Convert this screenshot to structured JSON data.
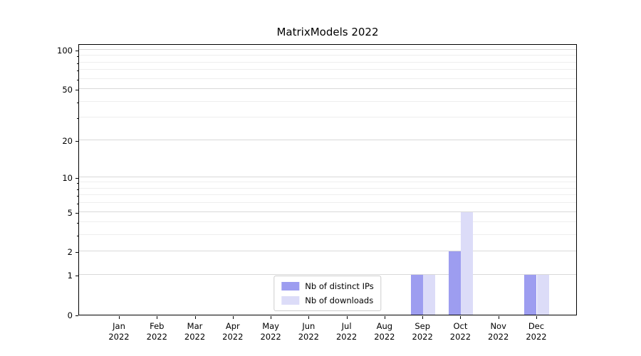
{
  "title": "MatrixModels 2022",
  "chart_data": {
    "type": "bar",
    "title": "MatrixModels 2022",
    "xlabel": "",
    "ylabel": "",
    "categories": [
      "Jan",
      "Feb",
      "Mar",
      "Apr",
      "May",
      "Jun",
      "Jul",
      "Aug",
      "Sep",
      "Oct",
      "Nov",
      "Dec"
    ],
    "year": "2022",
    "series": [
      {
        "name": "Nb of distinct IPs",
        "color": "#9d9df0",
        "values": [
          0,
          0,
          0,
          0,
          0,
          0,
          0,
          0,
          1,
          2,
          0,
          1
        ]
      },
      {
        "name": "Nb of downloads",
        "color": "#dcdcf8",
        "values": [
          0,
          0,
          0,
          0,
          0,
          0,
          0,
          0,
          1,
          5,
          0,
          1
        ]
      }
    ],
    "scale": "log10(value+1)",
    "ylim": [
      0,
      112
    ],
    "y_major_ticks": [
      0,
      1,
      2,
      5,
      10,
      20,
      50,
      100
    ],
    "y_minor_ticks": [
      3,
      4,
      6,
      7,
      8,
      9,
      30,
      40,
      60,
      70,
      80,
      90
    ],
    "grid": true,
    "legend_position": "lower center"
  },
  "colors": {
    "major_grid": "#d9d9d9",
    "minor_grid": "#eeeeee",
    "spine": "#000000",
    "legend_border": "#cccccc",
    "background": "#ffffff"
  }
}
